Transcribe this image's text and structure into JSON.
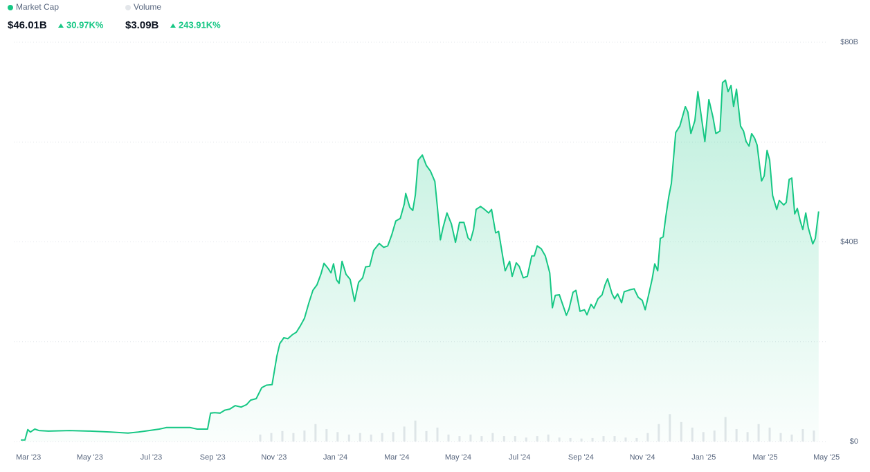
{
  "chart_data": {
    "type": "area",
    "summary": [
      {
        "value": "$46.01B",
        "change": "30.97K%"
      },
      {
        "value": "$3.09B",
        "change": "243.91K%"
      }
    ],
    "xlim": [
      2023.127,
      2025.333
    ],
    "xticks": [
      {
        "value": 2023.1667,
        "label": "Mar '23"
      },
      {
        "value": 2023.3333,
        "label": "May '23"
      },
      {
        "value": 2023.5,
        "label": "Jul '23"
      },
      {
        "value": 2023.6667,
        "label": "Sep '23"
      },
      {
        "value": 2023.8333,
        "label": "Nov '23"
      },
      {
        "value": 2024.0,
        "label": "Jan '24"
      },
      {
        "value": 2024.1667,
        "label": "Mar '24"
      },
      {
        "value": 2024.3333,
        "label": "May '24"
      },
      {
        "value": 2024.5,
        "label": "Jul '24"
      },
      {
        "value": 2024.6667,
        "label": "Sep '24"
      },
      {
        "value": 2024.8333,
        "label": "Nov '24"
      },
      {
        "value": 2025.0,
        "label": "Jan '25"
      },
      {
        "value": 2025.1667,
        "label": "Mar '25"
      },
      {
        "value": 2025.3333,
        "label": "May '25"
      }
    ],
    "ylim": [
      0,
      80
    ],
    "yticks": [
      {
        "value": 0,
        "label": "$0"
      },
      {
        "value": 40,
        "label": "$40B"
      },
      {
        "value": 80,
        "label": "$80B"
      }
    ],
    "y2lim": [
      0,
      80
    ],
    "grid": true,
    "series": [
      {
        "name": "Market Cap",
        "color": "#16c784",
        "type": "area",
        "x": [
          2023.146,
          2023.157,
          2023.165,
          2023.172,
          2023.184,
          2023.195,
          2023.221,
          2023.278,
          2023.334,
          2023.39,
          2023.437,
          2023.465,
          2023.494,
          2023.522,
          2023.541,
          2023.578,
          2023.606,
          2023.625,
          2023.653,
          2023.661,
          2023.672,
          2023.687,
          2023.7,
          2023.713,
          2023.728,
          2023.744,
          2023.759,
          2023.77,
          2023.785,
          2023.8,
          2023.813,
          2023.828,
          2023.841,
          2023.849,
          2023.86,
          2023.871,
          2023.883,
          2023.894,
          2023.905,
          2023.916,
          2023.928,
          2023.939,
          2023.95,
          2023.961,
          2023.969,
          2023.98,
          2023.988,
          2023.995,
          2024.003,
          2024.01,
          2024.018,
          2024.029,
          2024.04,
          2024.052,
          2024.063,
          2024.074,
          2024.082,
          2024.093,
          2024.104,
          2024.119,
          2024.131,
          2024.142,
          2024.153,
          2024.164,
          2024.176,
          2024.187,
          2024.191,
          2024.202,
          2024.21,
          2024.217,
          2024.225,
          2024.236,
          2024.247,
          2024.258,
          2024.27,
          2024.277,
          2024.285,
          2024.292,
          2024.303,
          2024.315,
          2024.326,
          2024.337,
          2024.349,
          2024.36,
          2024.367,
          2024.375,
          2024.382,
          2024.394,
          2024.405,
          2024.416,
          2024.424,
          2024.435,
          2024.443,
          2024.454,
          2024.461,
          2024.473,
          2024.48,
          2024.491,
          2024.499,
          2024.51,
          2024.521,
          2024.533,
          2024.54,
          2024.548,
          2024.559,
          2024.57,
          2024.582,
          2024.589,
          2024.597,
          2024.608,
          2024.615,
          2024.627,
          2024.634,
          2024.645,
          2024.653,
          2024.664,
          2024.676,
          2024.683,
          2024.694,
          2024.702,
          2024.713,
          2024.724,
          2024.732,
          2024.739,
          2024.751,
          2024.758,
          2024.766,
          2024.777,
          2024.784,
          2024.8,
          2024.811,
          2024.822,
          2024.833,
          2024.841,
          2024.852,
          2024.86,
          2024.867,
          2024.875,
          2024.882,
          2024.89,
          2024.897,
          2024.905,
          2024.912,
          2024.924,
          2024.935,
          2024.942,
          2024.95,
          2024.957,
          2024.965,
          2024.976,
          2024.984,
          2024.995,
          2025.003,
          2025.014,
          2025.025,
          2025.033,
          2025.044,
          2025.051,
          2025.059,
          2025.066,
          2025.074,
          2025.081,
          2025.089,
          2025.1,
          2025.108,
          2025.115,
          2025.123,
          2025.13,
          2025.138,
          2025.145,
          2025.157,
          2025.164,
          2025.172,
          2025.179,
          2025.187,
          2025.198,
          2025.205,
          2025.217,
          2025.224,
          2025.232,
          2025.239,
          2025.247,
          2025.254,
          2025.262,
          2025.269,
          2025.277,
          2025.284,
          2025.296,
          2025.303,
          2025.312
        ],
        "values": [
          0.3,
          0.3,
          2.4,
          1.9,
          2.5,
          2.2,
          2.1,
          2.2,
          2.1,
          1.9,
          1.7,
          1.9,
          2.2,
          2.5,
          2.8,
          2.8,
          2.8,
          2.5,
          2.5,
          5.7,
          5.8,
          5.7,
          6.3,
          6.5,
          7.2,
          6.9,
          7.4,
          8.3,
          8.6,
          10.8,
          11.3,
          11.4,
          17.1,
          19.6,
          20.8,
          20.6,
          21.4,
          21.9,
          23.2,
          24.7,
          27.8,
          30.3,
          31.4,
          33.6,
          35.7,
          34.7,
          33.8,
          35.6,
          32.4,
          31.7,
          36.1,
          33.5,
          32.5,
          28.1,
          31.9,
          32.8,
          35.0,
          35.1,
          38.3,
          39.7,
          38.9,
          39.2,
          41.4,
          44.2,
          44.7,
          47.6,
          49.7,
          46.9,
          46.3,
          49.4,
          56.4,
          57.4,
          55.3,
          54.2,
          52.1,
          46.9,
          40.4,
          42.8,
          45.8,
          43.6,
          39.9,
          43.9,
          43.9,
          40.8,
          40.3,
          42.5,
          46.5,
          47.1,
          46.5,
          45.8,
          46.5,
          41.8,
          42.1,
          37.2,
          34.2,
          36.1,
          33.1,
          35.8,
          35.1,
          32.8,
          33.1,
          37.2,
          37.2,
          39.2,
          38.6,
          37.2,
          33.8,
          26.8,
          29.3,
          29.4,
          27.9,
          25.3,
          26.5,
          29.9,
          30.3,
          26.1,
          26.4,
          25.4,
          27.5,
          26.7,
          28.6,
          29.4,
          31.4,
          32.6,
          29.6,
          28.6,
          29.6,
          27.8,
          30.0,
          30.4,
          30.6,
          28.9,
          28.3,
          26.4,
          29.9,
          32.6,
          35.6,
          34.2,
          40.7,
          41.0,
          45.1,
          49.0,
          51.7,
          61.9,
          63.2,
          65.0,
          67.1,
          66.0,
          61.7,
          64.3,
          70.1,
          64.3,
          60.1,
          68.5,
          65.0,
          61.7,
          62.2,
          71.9,
          72.4,
          70.1,
          71.3,
          67.1,
          70.6,
          63.2,
          62.2,
          60.1,
          59.2,
          61.7,
          60.8,
          59.4,
          52.2,
          53.2,
          58.3,
          56.4,
          49.3,
          46.5,
          48.3,
          47.4,
          47.9,
          52.5,
          52.8,
          45.6,
          46.7,
          44.2,
          42.5,
          45.8,
          42.8,
          39.6,
          40.7,
          46.1
        ]
      },
      {
        "name": "Volume",
        "color": "#e3e6ea",
        "type": "bar",
        "axis": "y2",
        "x": [
          2023.796,
          2023.826,
          2023.856,
          2023.886,
          2023.916,
          2023.946,
          2023.976,
          2024.006,
          2024.037,
          2024.067,
          2024.097,
          2024.127,
          2024.157,
          2024.187,
          2024.217,
          2024.247,
          2024.277,
          2024.307,
          2024.337,
          2024.367,
          2024.397,
          2024.427,
          2024.458,
          2024.488,
          2024.518,
          2024.548,
          2024.578,
          2024.608,
          2024.638,
          2024.668,
          2024.698,
          2024.728,
          2024.758,
          2024.788,
          2024.818,
          2024.848,
          2024.878,
          2024.908,
          2024.939,
          2024.969,
          2024.999,
          2025.029,
          2025.059,
          2025.089,
          2025.119,
          2025.149,
          2025.179,
          2025.209,
          2025.239,
          2025.269,
          2025.299
        ],
        "values": [
          1.4,
          1.7,
          2.1,
          1.7,
          2.2,
          3.5,
          2.5,
          1.9,
          1.4,
          1.7,
          1.4,
          1.7,
          1.9,
          3.0,
          4.2,
          2.1,
          2.8,
          1.4,
          1.1,
          1.4,
          1.1,
          1.7,
          1.1,
          1.1,
          0.8,
          1.1,
          1.4,
          0.8,
          0.7,
          0.6,
          0.7,
          1.1,
          1.1,
          0.8,
          0.7,
          1.7,
          3.5,
          5.5,
          3.9,
          2.8,
          1.9,
          2.2,
          4.9,
          2.5,
          1.9,
          3.5,
          2.8,
          1.7,
          1.4,
          2.5,
          2.2
        ]
      }
    ]
  }
}
